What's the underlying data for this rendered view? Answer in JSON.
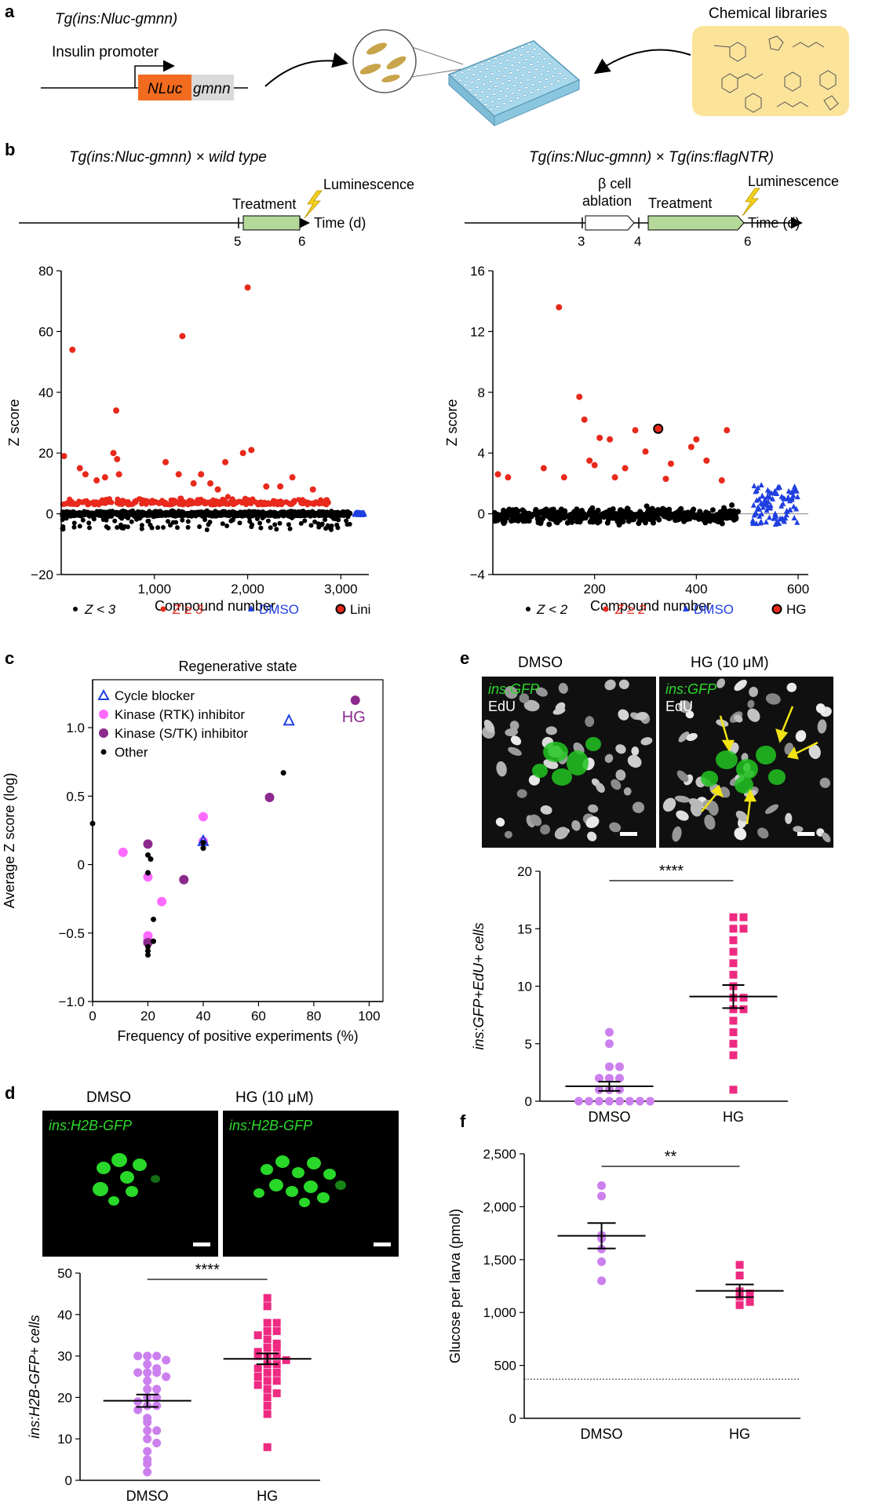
{
  "panels": {
    "a": {
      "label": "a",
      "construct_title": "Tg(ins:Nluc-gmnn)",
      "promoter_label": "Insulin promoter",
      "nluc_label": "NLuc",
      "gmnn_label": "gmnn",
      "library_label": "Chemical libraries",
      "colors": {
        "nluc": "#f26c1f",
        "gmnn": "#d9d9d9",
        "library_bg": "#fbe39a",
        "plate": "#a9d8ec"
      }
    },
    "b": {
      "label": "b",
      "left": {
        "title": "Tg(ins:Nluc-gmnn) × wild type",
        "timeline": {
          "treatment": "Treatment",
          "luminescence": "Luminescence",
          "time": "Time (d)",
          "ticks": [
            "5",
            "6"
          ]
        },
        "legend": [
          "Z < 3",
          "Z ≥ 3",
          "DMSO",
          "Lini"
        ]
      },
      "right": {
        "title": "Tg(ins:Nluc-gmnn) × Tg(ins:flagNTR)",
        "timeline": {
          "ablation_line1": "β cell",
          "ablation_line2": "ablation",
          "treatment": "Treatment",
          "luminescence": "Luminescence",
          "time": "Time (d)",
          "ticks": [
            "3",
            "4",
            "6"
          ]
        },
        "legend": [
          "Z < 2",
          "Z ≥ 2",
          "DMSO",
          "HG"
        ]
      }
    },
    "c": {
      "label": "c"
    },
    "d": {
      "label": "d",
      "image_labels": [
        "DMSO",
        "HG (10 μM)"
      ],
      "image_tags": [
        "ins:H2B-GFP",
        "ins:H2B-GFP"
      ]
    },
    "e": {
      "label": "e",
      "image_labels": [
        "DMSO",
        "HG (10 μM)"
      ],
      "image_tags": [
        "ins:GFP",
        "ins:GFP"
      ],
      "image_tags2": [
        "EdU",
        "EdU"
      ]
    },
    "f": {
      "label": "f"
    }
  },
  "chart_data": [
    {
      "id": "b-left",
      "type": "scatter",
      "xlabel": "Compound number",
      "ylabel": "Z score",
      "xlim": [
        0,
        3300
      ],
      "ylim": [
        -20,
        80
      ],
      "xticks": [
        "1,000",
        "2,000",
        "3,000"
      ],
      "xtick_values": [
        1000,
        2000,
        3000
      ],
      "yticks": [
        "−20",
        "0",
        "20",
        "40",
        "60",
        "80"
      ],
      "ytick_values": [
        -20,
        0,
        20,
        40,
        60,
        80
      ],
      "series": [
        {
          "name": "Z < 3",
          "color": "#000000",
          "description": "≈3,100 compounds, Z between about −8 and 3"
        },
        {
          "name": "Z ≥ 3",
          "color": "#e8291c",
          "points": [
            [
              30,
              19
            ],
            [
              120,
              54
            ],
            [
              200,
              15
            ],
            [
              260,
              13
            ],
            [
              380,
              11
            ],
            [
              470,
              12
            ],
            [
              560,
              20
            ],
            [
              590,
              34
            ],
            [
              600,
              18
            ],
            [
              620,
              13
            ],
            [
              1120,
              17
            ],
            [
              1260,
              13
            ],
            [
              1300,
              58.5
            ],
            [
              1420,
              10
            ],
            [
              1500,
              13
            ],
            [
              1600,
              10
            ],
            [
              1680,
              8
            ],
            [
              1760,
              17
            ],
            [
              1950,
              20
            ],
            [
              2000,
              74.5
            ],
            [
              2040,
              21
            ],
            [
              2200,
              9
            ],
            [
              2350,
              9
            ],
            [
              2480,
              12
            ],
            [
              2700,
              8
            ]
          ],
          "description": "hits with Z ≥ 3; notable values 74.5, 58.5, 54, 34"
        },
        {
          "name": "DMSO",
          "color": "#1f3fe0",
          "description": "≈100 controls near compound 3,150–3,250, Z ≈ 0"
        },
        {
          "name": "Lini",
          "color": "#e8291c"
        }
      ]
    },
    {
      "id": "b-right",
      "type": "scatter",
      "xlabel": "Compound number",
      "ylabel": "Z score",
      "xlim": [
        0,
        620
      ],
      "ylim": [
        -4,
        16
      ],
      "xticks": [
        "200",
        "400",
        "600"
      ],
      "xtick_values": [
        200,
        400,
        600
      ],
      "yticks": [
        "−4",
        "0",
        "4",
        "8",
        "12",
        "16"
      ],
      "ytick_values": [
        -4,
        0,
        4,
        8,
        12,
        16
      ],
      "series": [
        {
          "name": "Z < 2",
          "color": "#000000",
          "description": "≈470 compounds, Z between about −2.3 and 2"
        },
        {
          "name": "Z ≥ 2",
          "color": "#e8291c",
          "points": [
            [
              10,
              2.6
            ],
            [
              30,
              2.4
            ],
            [
              100,
              3.0
            ],
            [
              130,
              13.6
            ],
            [
              140,
              2.4
            ],
            [
              170,
              7.7
            ],
            [
              180,
              6.2
            ],
            [
              190,
              3.5
            ],
            [
              200,
              3.2
            ],
            [
              210,
              5.0
            ],
            [
              230,
              4.9
            ],
            [
              240,
              2.4
            ],
            [
              260,
              3.0
            ],
            [
              280,
              5.5
            ],
            [
              300,
              4.1
            ],
            [
              340,
              2.3
            ],
            [
              350,
              3.3
            ],
            [
              390,
              4.4
            ],
            [
              400,
              4.9
            ],
            [
              420,
              3.5
            ],
            [
              450,
              2.2
            ],
            [
              460,
              5.5
            ]
          ]
        },
        {
          "name": "DMSO",
          "color": "#1f3fe0",
          "description": "≈100 controls at compounds 510–600, Z between −0.7 and 2"
        },
        {
          "name": "HG",
          "color": "#e8291c",
          "points": [
            [
              325,
              5.6
            ]
          ]
        }
      ]
    },
    {
      "id": "c",
      "type": "scatter",
      "title": "Regenerative state",
      "xlabel": "Frequency of positive experiments (%)",
      "ylabel": "Average Z score (log)",
      "xlim": [
        0,
        105
      ],
      "ylim": [
        -1.0,
        1.35
      ],
      "xticks": [
        "0",
        "20",
        "40",
        "60",
        "80",
        "100"
      ],
      "xtick_values": [
        0,
        20,
        40,
        60,
        80,
        100
      ],
      "yticks": [
        "−1.0",
        "−0.5",
        "0",
        "0.5",
        "1.0"
      ],
      "ytick_values": [
        -1.0,
        -0.5,
        0,
        0.5,
        1.0
      ],
      "annotation": "HG",
      "legend_position": "top-left",
      "series": [
        {
          "name": "Cycle blocker",
          "color": "#1f3fe0",
          "marker": "triangle-open",
          "points": [
            [
              71,
              1.05
            ],
            [
              40,
              0.17
            ]
          ]
        },
        {
          "name": "Kinase (RTK) inhibitor",
          "color": "#ff6bff",
          "marker": "circle",
          "points": [
            [
              11,
              0.09
            ],
            [
              20,
              -0.09
            ],
            [
              20,
              -0.52
            ],
            [
              20,
              -0.55
            ],
            [
              25,
              -0.27
            ],
            [
              40,
              0.35
            ],
            [
              40,
              0.17
            ]
          ]
        },
        {
          "name": "Kinase (S/TK) inhibitor",
          "color": "#8b2a8c",
          "marker": "circle",
          "points": [
            [
              20,
              0.15
            ],
            [
              20,
              -0.57
            ],
            [
              33,
              -0.11
            ],
            [
              64,
              0.49
            ],
            [
              95,
              1.2
            ]
          ]
        },
        {
          "name": "Other",
          "color": "#000000",
          "marker": "dot",
          "points": [
            [
              0,
              0.3
            ],
            [
              20,
              0.07
            ],
            [
              21,
              0.04
            ],
            [
              20,
              -0.06
            ],
            [
              22,
              -0.4
            ],
            [
              22,
              -0.56
            ],
            [
              20,
              -0.6
            ],
            [
              20,
              -0.63
            ],
            [
              20,
              -0.66
            ],
            [
              40,
              0.12
            ],
            [
              40,
              0.16
            ],
            [
              69,
              0.67
            ]
          ]
        }
      ]
    },
    {
      "id": "d",
      "type": "scatter",
      "ylabel": "ins:H2B-GFP+ cells",
      "categories": [
        "DMSO",
        "HG"
      ],
      "ylim": [
        0,
        50
      ],
      "yticks": [
        "0",
        "10",
        "20",
        "30",
        "40",
        "50"
      ],
      "ytick_values": [
        0,
        10,
        20,
        30,
        40,
        50
      ],
      "significance": "****",
      "series": [
        {
          "name": "DMSO",
          "color": "#cc80ee",
          "marker": "circle",
          "mean": 19.2,
          "sem": 1.5,
          "values": [
            30,
            30,
            30,
            29,
            28,
            27,
            26,
            26,
            26,
            25,
            24,
            22,
            22,
            20,
            20,
            19,
            18,
            18,
            17,
            15,
            14,
            12,
            12,
            10,
            9,
            7,
            5,
            4,
            2
          ]
        },
        {
          "name": "HG",
          "color": "#ee2a82",
          "marker": "square",
          "mean": 29.3,
          "sem": 1.3,
          "values": [
            44,
            42,
            38,
            38,
            36,
            36,
            35,
            34,
            33,
            32,
            32,
            31,
            30,
            30,
            30,
            29,
            28,
            28,
            27,
            26,
            26,
            25,
            24,
            24,
            23,
            22,
            21,
            20,
            18,
            16,
            8
          ]
        }
      ]
    },
    {
      "id": "e",
      "type": "scatter",
      "ylabel": "ins:GFP+EdU+ cells",
      "categories": [
        "DMSO",
        "HG"
      ],
      "ylim": [
        0,
        20
      ],
      "yticks": [
        "0",
        "5",
        "10",
        "15",
        "20"
      ],
      "ytick_values": [
        0,
        5,
        10,
        15,
        20
      ],
      "significance": "****",
      "series": [
        {
          "name": "DMSO",
          "color": "#cc80ee",
          "marker": "circle",
          "mean": 1.3,
          "sem": 0.4,
          "values": [
            6,
            5,
            3,
            3,
            2,
            2,
            2,
            1,
            1,
            1,
            0,
            0,
            0,
            0,
            0,
            0,
            0,
            0
          ]
        },
        {
          "name": "HG",
          "color": "#ee2a82",
          "marker": "square",
          "mean": 9.1,
          "sem": 1.0,
          "values": [
            16,
            16,
            15,
            15,
            14,
            13,
            12,
            11,
            10,
            9,
            9,
            8,
            8,
            7,
            6,
            5,
            4,
            1
          ]
        }
      ]
    },
    {
      "id": "f",
      "type": "scatter",
      "ylabel": "Glucose per larva (pmol)",
      "categories": [
        "DMSO",
        "HG"
      ],
      "ylim": [
        0,
        2500
      ],
      "yticks": [
        "0",
        "500",
        "1,000",
        "1,500",
        "2,000",
        "2,500"
      ],
      "ytick_values": [
        0,
        500,
        1000,
        1500,
        2000,
        2500
      ],
      "significance": "**",
      "baseline": 370,
      "series": [
        {
          "name": "DMSO",
          "color": "#cc80ee",
          "marker": "circle",
          "mean": 1725,
          "sem": 120,
          "values": [
            2200,
            2100,
            1730,
            1700,
            1600,
            1480,
            1300
          ]
        },
        {
          "name": "HG",
          "color": "#ee2a82",
          "marker": "square",
          "mean": 1205,
          "sem": 60,
          "values": [
            1450,
            1350,
            1200,
            1180,
            1150,
            1100,
            1070
          ]
        }
      ]
    }
  ]
}
